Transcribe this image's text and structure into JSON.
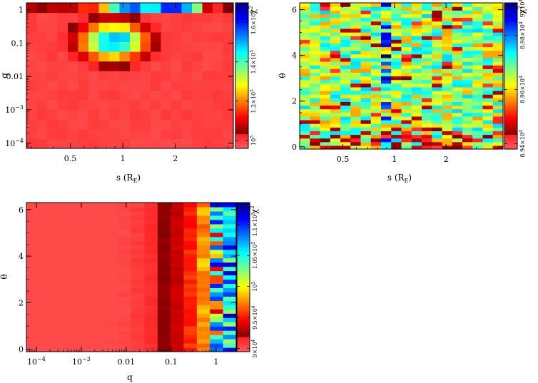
{
  "chart_data": [
    {
      "type": "heatmap",
      "id": "panel-s-q",
      "xlabel": "s (R",
      "xlabel_sub": "E",
      "xlabel_close": ")",
      "ylabel": "q",
      "x_scale": "log",
      "y_scale": "log",
      "xlim": [
        0.28,
        4.3
      ],
      "ylim": [
        7e-05,
        1.6
      ],
      "x_ticks": [
        {
          "value": 0.5,
          "label": "0.5"
        },
        {
          "value": 1,
          "label": "1"
        },
        {
          "value": 2,
          "label": "2"
        }
      ],
      "y_ticks": [
        {
          "value": 1,
          "label": "1",
          "exp": ""
        },
        {
          "value": 0.1,
          "label": "0.1",
          "exp": ""
        },
        {
          "value": 0.01,
          "label": "0.01",
          "exp": ""
        },
        {
          "value": 0.001,
          "label": "10",
          "exp": "−3"
        },
        {
          "value": 0.0001,
          "label": "10",
          "exp": "−4"
        }
      ],
      "features": "low chi2 (~1e5, red) everywhere except a high-chi2 band at q≈1, s≈0.8–1.2 and a green/cyan lobe centered near s≈0.8, q≈0.07",
      "colorbar": {
        "title": "χ",
        "title_exp": "2",
        "range": [
          96000,
          170000
        ],
        "ticks": [
          {
            "value": 100000,
            "label": "10",
            "exp": "5"
          },
          {
            "value": 120000,
            "label": "1.2×10",
            "exp": "5"
          },
          {
            "value": 140000,
            "label": "1.4×10",
            "exp": "5"
          },
          {
            "value": 160000,
            "label": "1.6×10",
            "exp": "5"
          }
        ]
      }
    },
    {
      "type": "heatmap",
      "id": "panel-s-theta",
      "xlabel": "s (R",
      "xlabel_sub": "E",
      "xlabel_close": ")",
      "ylabel": "θ",
      "x_scale": "log",
      "y_scale": "linear",
      "xlim": [
        0.28,
        4.3
      ],
      "ylim": [
        -0.1,
        6.3
      ],
      "x_ticks": [
        {
          "value": 0.5,
          "label": "0.5"
        },
        {
          "value": 1,
          "label": "1"
        },
        {
          "value": 2,
          "label": "2"
        }
      ],
      "y_ticks": [
        {
          "value": 0,
          "label": "0"
        },
        {
          "value": 2,
          "label": "2"
        },
        {
          "value": 4,
          "label": "4"
        },
        {
          "value": 6,
          "label": "6"
        }
      ],
      "features": "mostly green/yellow noise with dark-blue/cyan cells concentrated along s≈1 and red cells scattered near θ≈0 and θ≈2.5",
      "colorbar": {
        "title": "χ",
        "title_exp": "2",
        "range": [
          89380,
          89920
        ],
        "ticks": [
          {
            "value": 89400,
            "label": "8.94×10",
            "exp": "4"
          },
          {
            "value": 89600,
            "label": "8.96×10",
            "exp": "4"
          },
          {
            "value": 89800,
            "label": "8.98×10",
            "exp": "4"
          },
          {
            "value": 89900,
            "label": "9×10",
            "exp": "4"
          }
        ]
      }
    },
    {
      "type": "heatmap",
      "id": "panel-q-theta",
      "xlabel": "q",
      "ylabel": "θ",
      "x_scale": "log",
      "y_scale": "linear",
      "xlim": [
        6e-05,
        2.8
      ],
      "ylim": [
        -0.1,
        6.3
      ],
      "x_ticks": [
        {
          "value": 0.0001,
          "label": "10",
          "exp": "−4"
        },
        {
          "value": 0.001,
          "label": "10",
          "exp": "−3"
        },
        {
          "value": 0.01,
          "label": "0.01",
          "exp": ""
        },
        {
          "value": 0.1,
          "label": "0.1",
          "exp": ""
        },
        {
          "value": 1,
          "label": "1",
          "exp": ""
        }
      ],
      "y_ticks": [
        {
          "value": 0,
          "label": "0"
        },
        {
          "value": 2,
          "label": "2"
        },
        {
          "value": 4,
          "label": "4"
        },
        {
          "value": 6,
          "label": "6"
        }
      ],
      "features": "flat red (~9e4) for small q; chi2 rises with q, reaching dark blue / yellow mix near q≈1",
      "colorbar": {
        "title": "χ",
        "title_exp": "2",
        "range": [
          89500,
          113500
        ],
        "ticks": [
          {
            "value": 90000,
            "label": "9×10",
            "exp": "4"
          },
          {
            "value": 95000,
            "label": "9.5×10",
            "exp": "4"
          },
          {
            "value": 100000,
            "label": "10",
            "exp": "5"
          },
          {
            "value": 105000,
            "label": "1.05×10",
            "exp": "5"
          },
          {
            "value": 110000,
            "label": "1.1×10",
            "exp": "5"
          }
        ]
      }
    }
  ]
}
